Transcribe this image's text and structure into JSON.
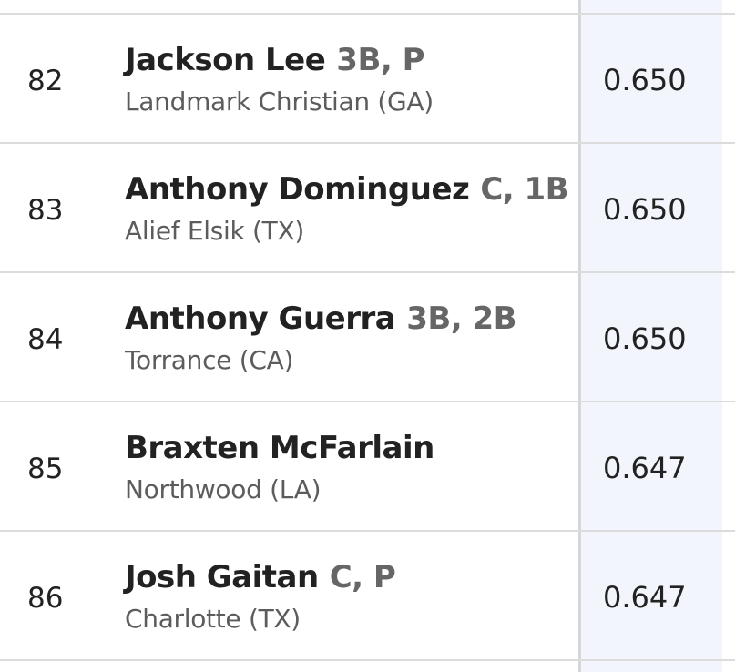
{
  "table": {
    "rows": [
      {
        "rank": "82",
        "name": "Jackson Lee",
        "positions": "3B, P",
        "school": "Landmark Christian (GA)",
        "value": "0.650"
      },
      {
        "rank": "83",
        "name": "Anthony Dominguez",
        "positions": "C, 1B",
        "school": "Alief Elsik (TX)",
        "value": "0.650"
      },
      {
        "rank": "84",
        "name": "Anthony Guerra",
        "positions": "3B, 2B",
        "school": "Torrance (CA)",
        "value": "0.650"
      },
      {
        "rank": "85",
        "name": "Braxten McFarlain",
        "school": "Northwood (LA)",
        "value": "0.647"
      },
      {
        "rank": "86",
        "name": "Josh Gaitan",
        "positions": "C, P",
        "school": "Charlotte (TX)",
        "value": "0.647"
      }
    ]
  }
}
